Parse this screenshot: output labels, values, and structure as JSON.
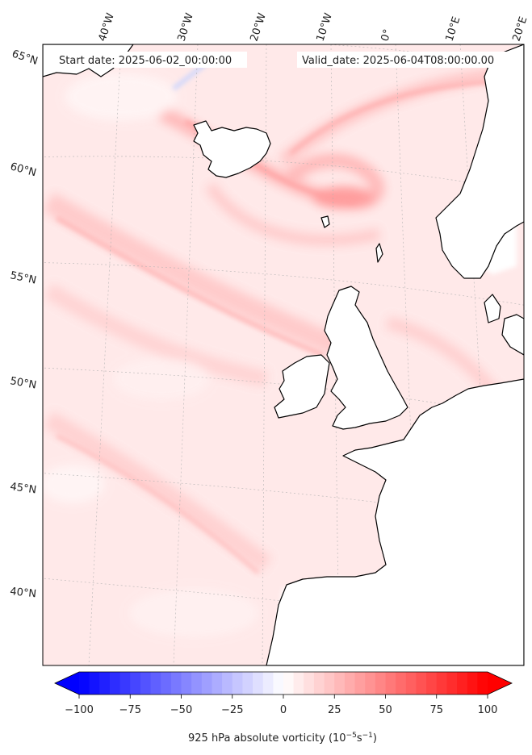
{
  "map": {
    "start_label": "Start date: 2025-06-02_00:00:00",
    "valid_label": "Valid_date: 2025-06-04T08:00:00.00",
    "longitude_labels": [
      "40°W",
      "30°W",
      "20°W",
      "10°W",
      "0°",
      "10°E",
      "20°E"
    ],
    "latitude_labels": [
      "65°N",
      "60°N",
      "55°N",
      "50°N",
      "45°N",
      "40°N"
    ]
  },
  "colorbar": {
    "ticks": [
      "−100",
      "−75",
      "−50",
      "−25",
      "0",
      "25",
      "50",
      "75",
      "100"
    ],
    "title": "925 hPa absolute vorticity (10",
    "title_exp1": "−5",
    "title_mid": "s",
    "title_exp2": "−1",
    "title_end": ")",
    "min_color": "#0000ff",
    "mid_color": "#ffffff",
    "max_color": "#ff0000"
  }
}
